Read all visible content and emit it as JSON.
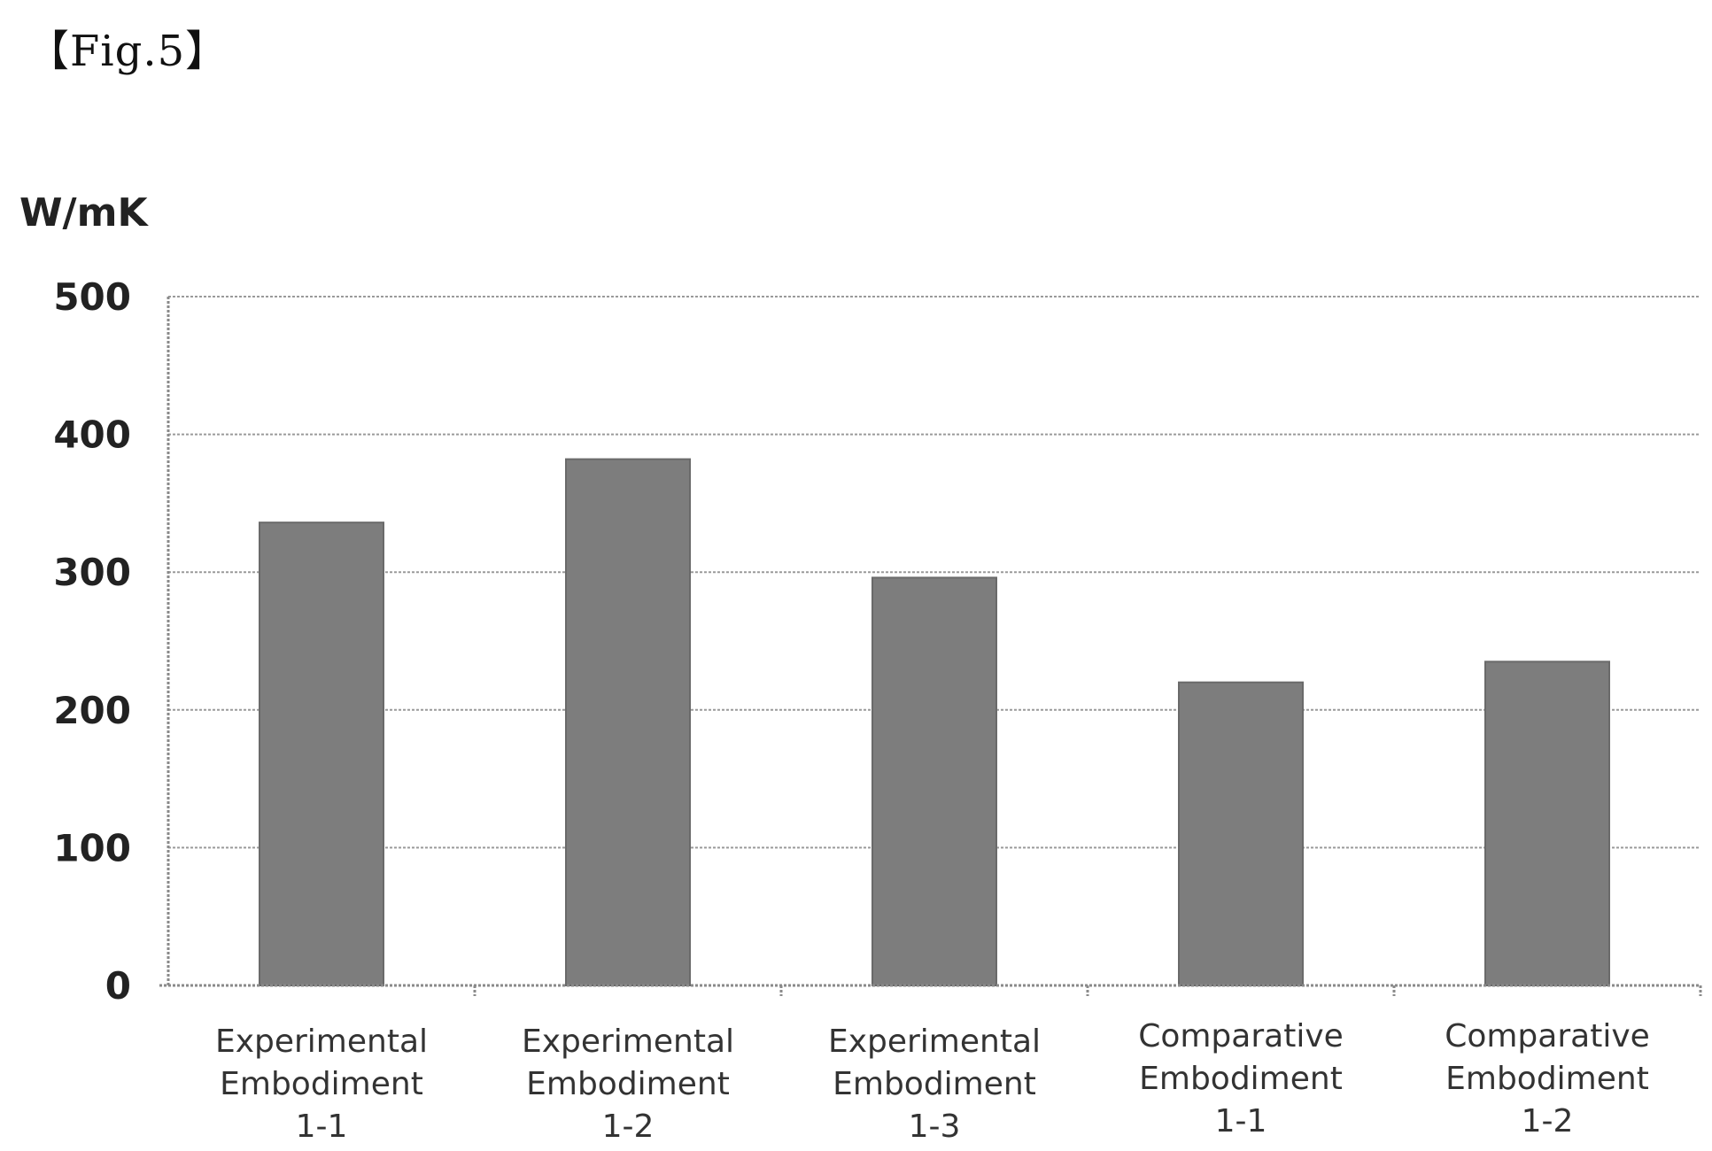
{
  "figure_label": "【Fig.5】",
  "chart_data": {
    "type": "bar",
    "ylabel": "W/mK",
    "ylim": [
      0,
      500
    ],
    "yticks": [
      "0",
      "100",
      "200",
      "300",
      "400",
      "500"
    ],
    "grid": true,
    "categories": [
      "Experimental Embodiment 1-1",
      "Experimental Embodiment 1-2",
      "Experimental Embodiment 1-3",
      "Comparative Embodiment 1-1",
      "Comparative Embodiment 1-2"
    ],
    "category_lines": [
      [
        "Experimental",
        "Embodiment",
        "1-1"
      ],
      [
        "Experimental",
        "Embodiment",
        "1-2"
      ],
      [
        "Experimental",
        "Embodiment",
        "1-3"
      ],
      [
        "Comparative",
        "Embodiment",
        "1-1"
      ],
      [
        "Comparative",
        "Embodiment",
        "1-2"
      ]
    ],
    "values": [
      336,
      382,
      296,
      220,
      235
    ],
    "colors": {
      "bar": "#7d7d7d",
      "grid": "#9a9a9a"
    }
  }
}
